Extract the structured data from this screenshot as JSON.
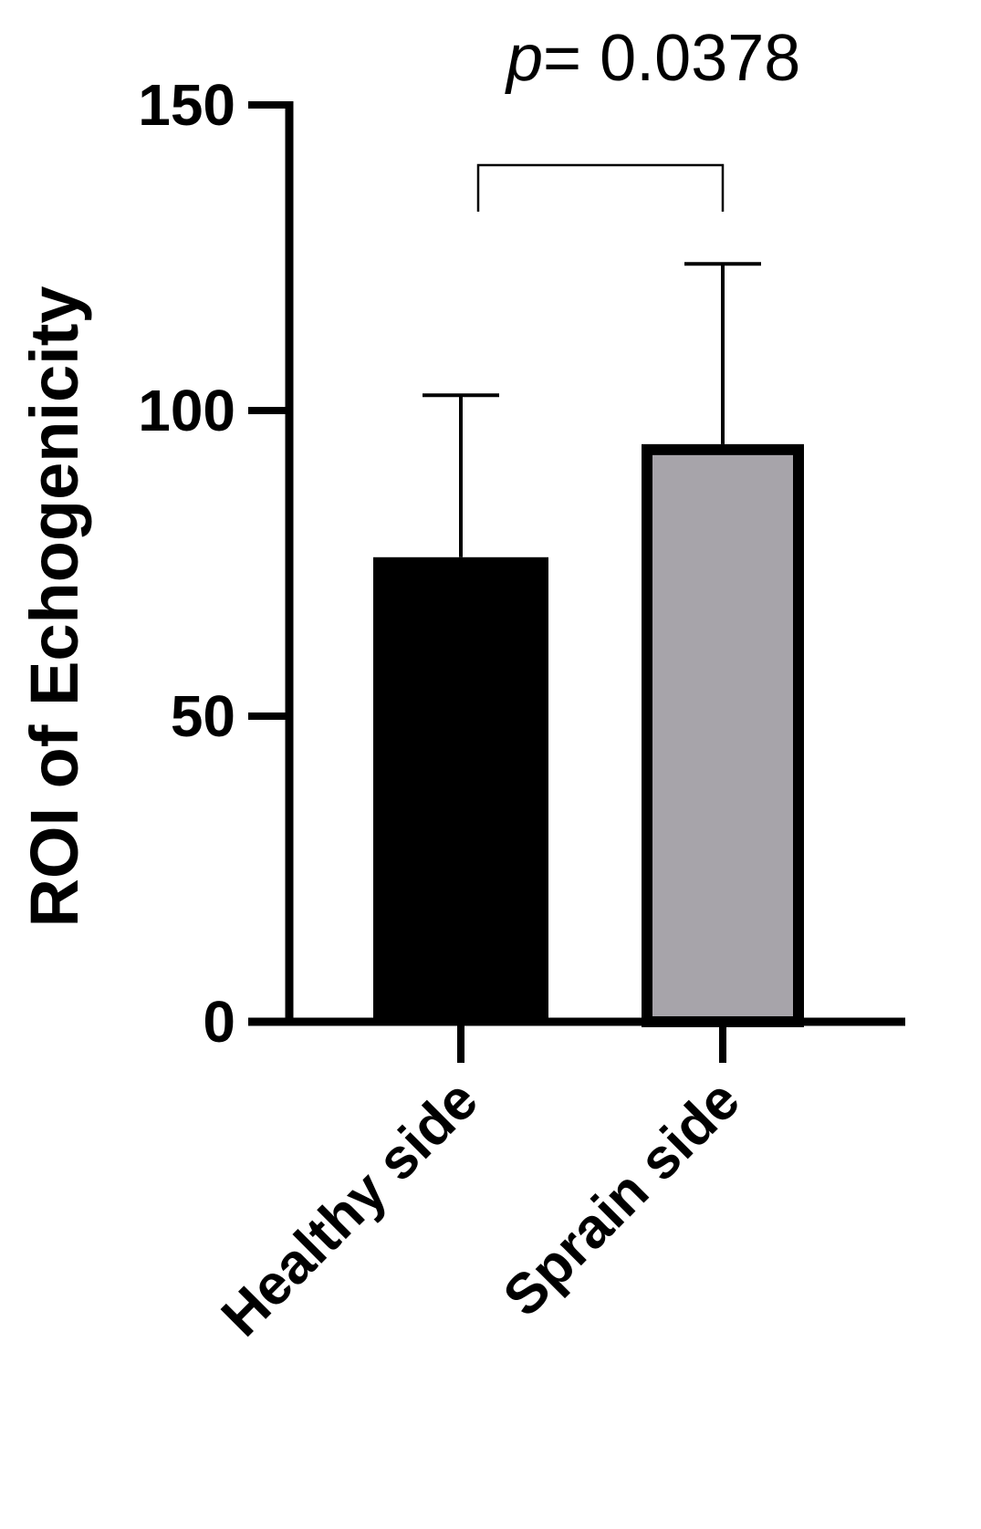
{
  "chart_data": {
    "type": "bar",
    "categories": [
      "Healthy side",
      "Sprain side"
    ],
    "values": [
      76,
      94.5
    ],
    "error": [
      26.5,
      29.5
    ],
    "bar_colors": [
      "#000000",
      "#a7a4aa"
    ],
    "bar_edge_color": "#000000",
    "title": "",
    "xlabel": "",
    "ylabel": "ROI of Echogenicity",
    "ylim": [
      0,
      150
    ],
    "yticks": [
      0,
      50,
      100,
      150
    ],
    "ytick_labels": [
      "0",
      "50",
      "100",
      "150"
    ],
    "grid": false,
    "annotation": {
      "p_symbol": "p",
      "p_value_text": "= 0.0378",
      "bracket_between": [
        "Healthy side",
        "Sprain side"
      ]
    }
  }
}
